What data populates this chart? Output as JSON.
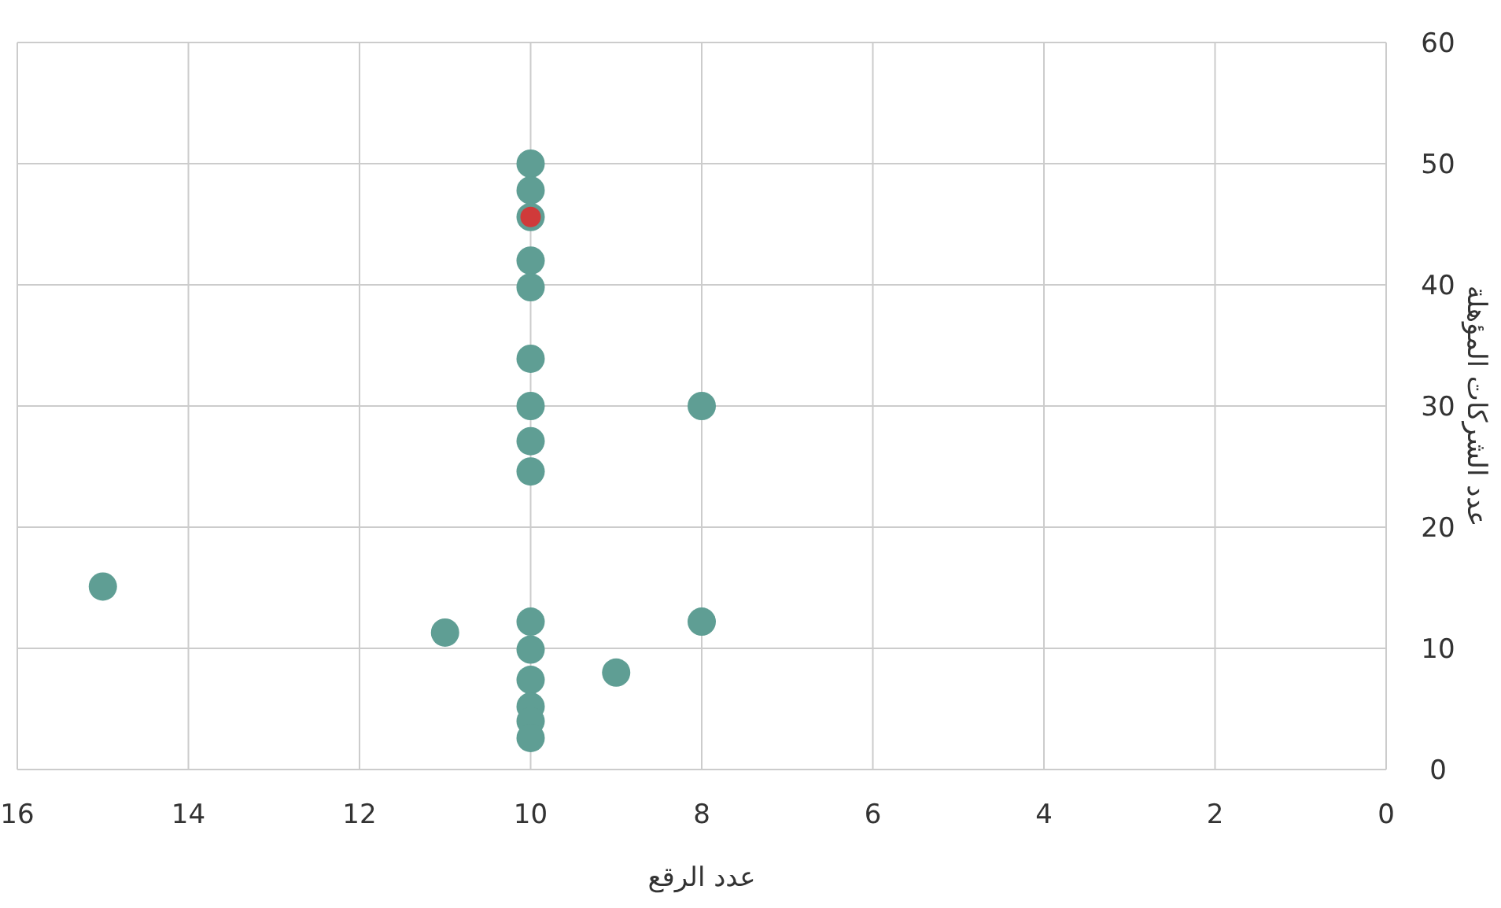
{
  "chart_data": {
    "type": "scatter",
    "xlabel": "عدد الرقع",
    "ylabel": "عدد الشركات المؤهلة",
    "xlim": [
      16,
      0
    ],
    "xticks": [
      16,
      14,
      12,
      10,
      8,
      6,
      4,
      2,
      0
    ],
    "ylim": [
      0,
      60
    ],
    "yticks": [
      0,
      10,
      20,
      30,
      40,
      50,
      60
    ],
    "grid": true,
    "marker": "circle",
    "series": [
      {
        "color": "#5f9e94",
        "x": [
          10,
          10,
          10,
          10,
          10,
          10,
          10,
          10,
          10,
          10,
          10,
          10,
          10,
          10,
          10,
          15,
          11,
          9,
          8,
          8
        ],
        "values": [
          50,
          47.8,
          45.6,
          42,
          39.8,
          33.9,
          30,
          27.1,
          24.6,
          12.2,
          9.9,
          7.4,
          5.2,
          4,
          2.6,
          15.1,
          11.3,
          8,
          30,
          12.2
        ]
      },
      {
        "color": "#d03a3a",
        "x": [
          10
        ],
        "values": [
          45.6
        ]
      }
    ]
  }
}
